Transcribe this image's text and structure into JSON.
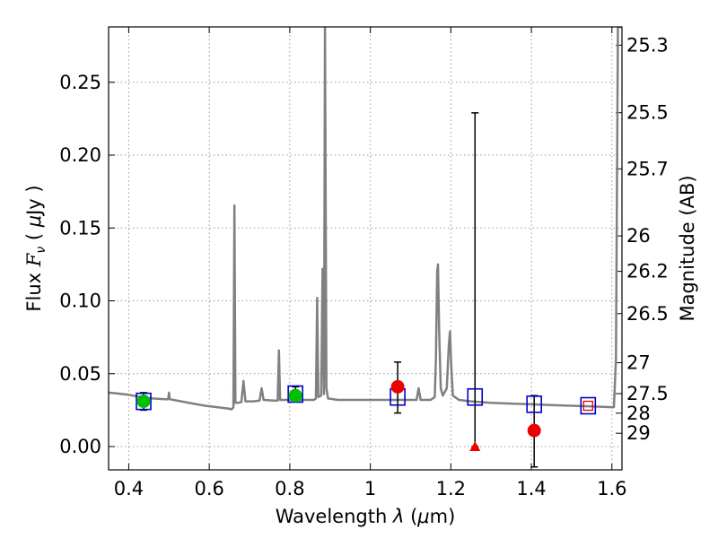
{
  "chart_data": {
    "type": "scatter",
    "title": "",
    "xlabel": "Wavelength  λ (μm)",
    "ylabel": "Flux  Fν  ( μJy )",
    "ylabel_right": "Magnitude (AB)",
    "xlim": [
      0.35,
      1.625
    ],
    "ylim": [
      -0.016,
      0.288
    ],
    "grid": true,
    "x_ticks": [
      0.4,
      0.6,
      0.8,
      1.0,
      1.2,
      1.4,
      1.6
    ],
    "x_tick_labels": [
      "0.4",
      "0.6",
      "0.8",
      "1",
      "1.2",
      "1.4",
      "1.6"
    ],
    "y_ticks": [
      0.0,
      0.05,
      0.1,
      0.15,
      0.2,
      0.25
    ],
    "y_tick_labels": [
      "0.00",
      "0.05",
      "0.10",
      "0.15",
      "0.20",
      "0.25"
    ],
    "right_ticks": [
      {
        "label": "25.3",
        "mag": 25.3
      },
      {
        "label": "25.5",
        "mag": 25.5
      },
      {
        "label": "25.7",
        "mag": 25.7
      },
      {
        "label": "26",
        "mag": 26.0
      },
      {
        "label": "26.2",
        "mag": 26.2
      },
      {
        "label": "26.5",
        "mag": 26.5
      },
      {
        "label": "27",
        "mag": 27.0
      },
      {
        "label": "27.5",
        "mag": 27.5
      },
      {
        "label": "28",
        "mag": 28.0
      },
      {
        "label": "29",
        "mag": 29.0
      }
    ],
    "series": [
      {
        "role": "model-spectrum",
        "color": "#808080",
        "points": [
          [
            0.35,
            0.037
          ],
          [
            0.37,
            0.0365
          ],
          [
            0.4,
            0.0355
          ],
          [
            0.43,
            0.034
          ],
          [
            0.46,
            0.033
          ],
          [
            0.49,
            0.0325
          ],
          [
            0.498,
            0.0325
          ],
          [
            0.5,
            0.037
          ],
          [
            0.502,
            0.0325
          ],
          [
            0.53,
            0.031
          ],
          [
            0.56,
            0.0295
          ],
          [
            0.59,
            0.028
          ],
          [
            0.62,
            0.027
          ],
          [
            0.65,
            0.026
          ],
          [
            0.655,
            0.0255
          ],
          [
            0.66,
            0.027
          ],
          [
            0.6625,
            0.1655
          ],
          [
            0.665,
            0.03
          ],
          [
            0.67,
            0.03
          ],
          [
            0.68,
            0.0305
          ],
          [
            0.685,
            0.045
          ],
          [
            0.69,
            0.031
          ],
          [
            0.71,
            0.031
          ],
          [
            0.725,
            0.0315
          ],
          [
            0.73,
            0.04
          ],
          [
            0.735,
            0.032
          ],
          [
            0.76,
            0.0315
          ],
          [
            0.77,
            0.0315
          ],
          [
            0.773,
            0.066
          ],
          [
            0.776,
            0.032
          ],
          [
            0.8,
            0.032
          ],
          [
            0.83,
            0.032
          ],
          [
            0.86,
            0.032
          ],
          [
            0.865,
            0.033
          ],
          [
            0.868,
            0.102
          ],
          [
            0.871,
            0.034
          ],
          [
            0.878,
            0.035
          ],
          [
            0.8815,
            0.122
          ],
          [
            0.885,
            0.036
          ],
          [
            0.8875,
            0.288
          ],
          [
            0.891,
            0.04
          ],
          [
            0.895,
            0.033
          ],
          [
            0.92,
            0.032
          ],
          [
            0.95,
            0.032
          ],
          [
            1.0,
            0.032
          ],
          [
            1.05,
            0.032
          ],
          [
            1.1,
            0.032
          ],
          [
            1.115,
            0.032
          ],
          [
            1.12,
            0.04
          ],
          [
            1.125,
            0.032
          ],
          [
            1.15,
            0.032
          ],
          [
            1.16,
            0.034
          ],
          [
            1.163,
            0.06
          ],
          [
            1.166,
            0.12
          ],
          [
            1.168,
            0.125
          ],
          [
            1.171,
            0.08
          ],
          [
            1.175,
            0.04
          ],
          [
            1.18,
            0.035
          ],
          [
            1.19,
            0.04
          ],
          [
            1.195,
            0.07
          ],
          [
            1.198,
            0.079
          ],
          [
            1.201,
            0.055
          ],
          [
            1.205,
            0.035
          ],
          [
            1.22,
            0.032
          ],
          [
            1.25,
            0.031
          ],
          [
            1.3,
            0.03
          ],
          [
            1.35,
            0.0295
          ],
          [
            1.4,
            0.029
          ],
          [
            1.45,
            0.0285
          ],
          [
            1.5,
            0.028
          ],
          [
            1.55,
            0.0275
          ],
          [
            1.6,
            0.027
          ],
          [
            1.605,
            0.027
          ],
          [
            1.61,
            0.06
          ],
          [
            1.615,
            0.288
          ],
          [
            1.62,
            0.288
          ],
          [
            1.625,
            0.288
          ]
        ]
      }
    ],
    "errorbars": [
      {
        "x": 0.437,
        "lo": 0.025,
        "hi": 0.037
      },
      {
        "x": 0.814,
        "lo": 0.032,
        "hi": 0.041
      },
      {
        "x": 1.068,
        "lo": 0.023,
        "hi": 0.058
      },
      {
        "x": 1.26,
        "lo": 0.0,
        "hi": 0.229
      },
      {
        "x": 1.407,
        "lo": -0.014,
        "hi": 0.035
      }
    ],
    "model_points": [
      {
        "x": 0.437,
        "y": 0.031
      },
      {
        "x": 0.814,
        "y": 0.036
      },
      {
        "x": 1.068,
        "y": 0.034
      },
      {
        "x": 1.26,
        "y": 0.034
      },
      {
        "x": 1.407,
        "y": 0.029
      },
      {
        "x": 1.541,
        "y": 0.028
      }
    ],
    "detections_green": [
      {
        "x": 0.437,
        "y": 0.031
      },
      {
        "x": 0.814,
        "y": 0.035
      }
    ],
    "detections_red": [
      {
        "x": 1.068,
        "y": 0.041
      },
      {
        "x": 1.407,
        "y": 0.011
      }
    ],
    "upper_limits": [
      {
        "x": 1.26,
        "y": 0.0
      }
    ],
    "small_red_squares": [
      {
        "x": 1.541,
        "y": 0.028
      }
    ],
    "colors": {
      "spectrum": "#808080",
      "model_marker": "#0000cc",
      "green": "#00c000",
      "red": "#ee0000",
      "errorbar": "#000000",
      "grid": "#9a9a9a"
    }
  }
}
